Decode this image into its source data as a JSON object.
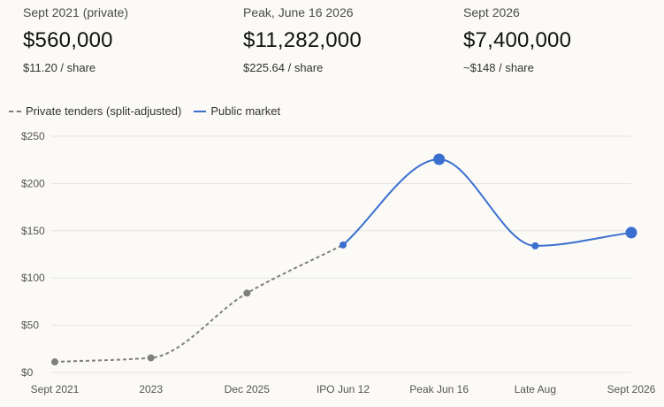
{
  "stats": [
    {
      "label": "Sept 2021 (private)",
      "value": "$560,000",
      "sub": "$11.20 / share"
    },
    {
      "label": "Peak, June 16 2026",
      "value": "$11,282,000",
      "sub": "$225.64 / share"
    },
    {
      "label": "Sept 2026",
      "value": "$7,400,000",
      "sub": "~$148 / share"
    }
  ],
  "colors": {
    "private": "#7f7f7f",
    "public": "#3a6fcf",
    "grid": "#e3e3e3"
  },
  "chart_data": {
    "type": "line",
    "categories": [
      "Sept 2021",
      "2023",
      "Dec 2025",
      "IPO Jun 12",
      "Peak Jun 16",
      "Late Aug",
      "Sept 2026"
    ],
    "ylim": [
      0,
      250
    ],
    "yticks": [
      0,
      50,
      100,
      150,
      200,
      250
    ],
    "ytick_labels": [
      "$0",
      "$50",
      "$100",
      "$150",
      "$200",
      "$250"
    ],
    "grid": true,
    "legend_position": "top-left",
    "series": [
      {
        "name": "Private tenders (split-adjusted)",
        "style": "dashed",
        "color": "#7f7f7f",
        "points": [
          [
            0,
            11.2
          ],
          [
            1,
            15.5
          ],
          [
            2,
            84
          ],
          [
            3,
            135
          ]
        ]
      },
      {
        "name": "Public market",
        "style": "solid",
        "color": "#3a6fcf",
        "points": [
          [
            3,
            135
          ],
          [
            4,
            225.64
          ],
          [
            5,
            134
          ],
          [
            6,
            148
          ]
        ],
        "highlight": [
          4,
          6
        ]
      }
    ]
  }
}
